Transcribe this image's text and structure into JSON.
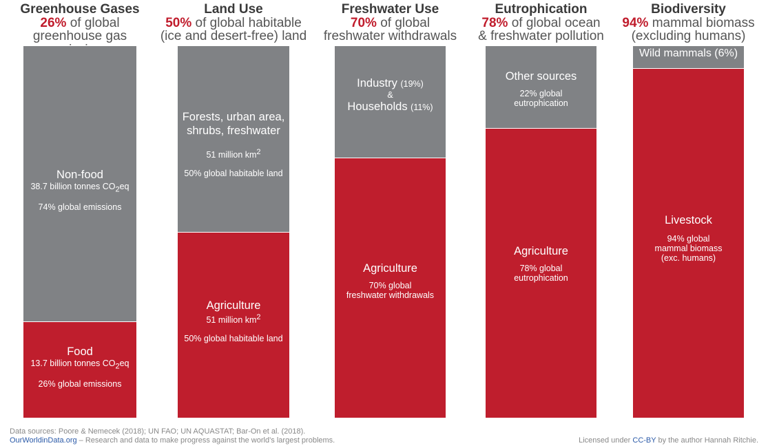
{
  "colors": {
    "food": "#bf1e2d",
    "nonfood": "#808285",
    "text": "#555555",
    "accent": "#c01c2c"
  },
  "chart_data": {
    "type": "bar",
    "stacked": true,
    "orientation": "vertical",
    "title": "",
    "categories": [
      "Greenhouse Gases",
      "Land Use",
      "Freshwater Use",
      "Eutrophication",
      "Biodiversity"
    ],
    "series": [
      {
        "name": "Food / agriculture share",
        "color": "#bf1e2d",
        "values": [
          26,
          50,
          70,
          78,
          94
        ]
      },
      {
        "name": "Other share",
        "color": "#808285",
        "values": [
          74,
          50,
          30,
          22,
          6
        ]
      }
    ],
    "ylim": [
      0,
      100
    ],
    "ylabel": "",
    "columns": [
      {
        "title": "Greenhouse Gases",
        "pct": "26%",
        "desc1": "of global",
        "desc2": "greenhouse gas emissions",
        "top_share": 74,
        "bottom_share": 26,
        "top": {
          "label": "Non-food",
          "line1_pre": "38.7 billion tonnes CO",
          "line1_sub": "2",
          "line1_post": "eq",
          "line2": "74% global emissions"
        },
        "bottom": {
          "label": "Food",
          "line1_pre": "13.7 billion tonnes CO",
          "line1_sub": "2",
          "line1_post": "eq",
          "line2": "26% global emissions"
        }
      },
      {
        "title": "Land Use",
        "pct": "50%",
        "desc1": "of global habitable",
        "desc2": "(ice and desert-free) land",
        "top_share": 50,
        "bottom_share": 50,
        "top": {
          "label1": "Forests, urban area,",
          "label2": "shrubs, freshwater",
          "line1_pre": "51 million km",
          "line1_sup": "2",
          "line2": "50% global habitable land"
        },
        "bottom": {
          "label": "Agriculture",
          "line1_pre": "51 million km",
          "line1_sup": "2",
          "line2": "50% global habitable land"
        }
      },
      {
        "title": "Freshwater Use",
        "pct": "70%",
        "desc1": "of global",
        "desc2": "freshwater withdrawals",
        "top_share": 30,
        "bottom_share": 70,
        "top": {
          "label1": "Industry",
          "val1": "(19%)",
          "amp": "&",
          "label2": "Households",
          "val2": "(11%)"
        },
        "bottom": {
          "label": "Agriculture",
          "line1": "70% global",
          "line2": "freshwater withdrawals"
        }
      },
      {
        "title": "Eutrophication",
        "pct": "78%",
        "desc1": "of global ocean",
        "desc2": "& freshwater pollution",
        "top_share": 22,
        "bottom_share": 78,
        "top": {
          "label": "Other sources",
          "line1": "22% global",
          "line2": "eutrophication"
        },
        "bottom": {
          "label": "Agriculture",
          "line1": "78% global",
          "line2": "eutrophication"
        }
      },
      {
        "title": "Biodiversity",
        "pct": "94%",
        "desc1": "mammal biomass",
        "desc2": "(excluding humans)",
        "top_share": 6,
        "bottom_share": 94,
        "top": {
          "label": "Wild mammals (6%)"
        },
        "bottom": {
          "label": "Livestock",
          "line1": "94% global",
          "line2": "mammal biomass",
          "line3": "(exc. humans)"
        }
      }
    ]
  },
  "footer": {
    "sources": "Data sources: Poore & Nemecek (2018); UN FAO; UN AQUASTAT; Bar-On et al. (2018).",
    "brand": "OurWorldinData.org",
    "tagline": " – Research and data to make progress against the world’s largest problems.",
    "license_pre": "Licensed under ",
    "license": "CC-BY",
    "license_post": " by the author Hannah Ritchie."
  }
}
